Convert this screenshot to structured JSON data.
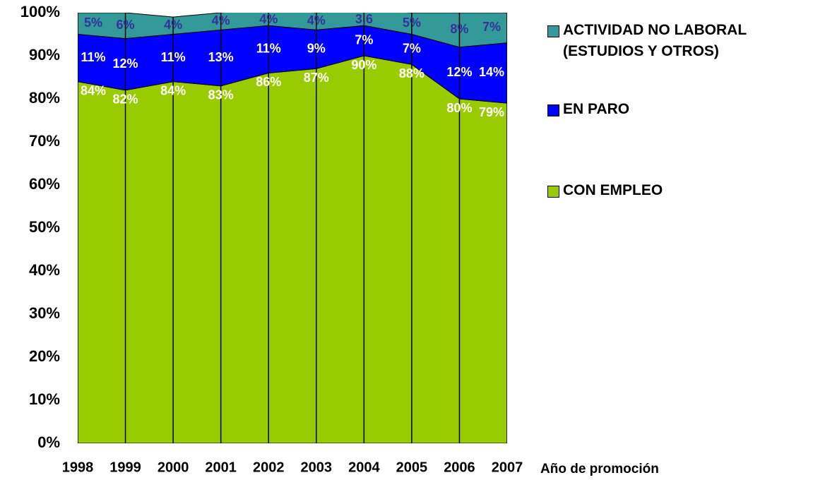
{
  "chart_data": {
    "type": "stacked_area",
    "x_label": "Año de promoción",
    "categories": [
      "1998",
      "1999",
      "2000",
      "2001",
      "2002",
      "2003",
      "2004",
      "2005",
      "2006",
      "2007"
    ],
    "series": [
      {
        "name": "CON EMPLEO",
        "color": "#99cc00",
        "label_color": "#ffffff",
        "values": [
          84,
          82,
          84,
          83,
          86,
          87,
          90,
          88,
          80,
          79
        ],
        "value_labels": [
          "84%",
          "82%",
          "84%",
          "83%",
          "86%",
          "87%",
          "90%",
          "88%",
          "80%",
          "79%"
        ]
      },
      {
        "name": "EN PARO",
        "color": "#0000ff",
        "label_color": "#ffffff",
        "values": [
          11,
          12,
          11,
          13,
          11,
          9,
          7,
          7,
          12,
          14
        ],
        "value_labels": [
          "11%",
          "12%",
          "11%",
          "13%",
          "11%",
          "9%",
          "7%",
          "7%",
          "12%",
          "14%"
        ]
      },
      {
        "name": "ACTIVIDAD NO LABORAL (ESTUDIOS Y OTROS)",
        "color": "#339999",
        "label_color": "#333399",
        "values": [
          5,
          6,
          4,
          4,
          4,
          4,
          3.6,
          5,
          8,
          7
        ],
        "value_labels": [
          "5%",
          "6%",
          "4%",
          "4%",
          "4%",
          "4%",
          "3,6",
          "5%",
          "8%",
          "7%"
        ]
      }
    ],
    "ylim": [
      0,
      100
    ],
    "yticks": [
      {
        "value": 0,
        "label": "0%"
      },
      {
        "value": 10,
        "label": "10%"
      },
      {
        "value": 20,
        "label": "20%"
      },
      {
        "value": 30,
        "label": "30%"
      },
      {
        "value": 40,
        "label": "40%"
      },
      {
        "value": 50,
        "label": "50%"
      },
      {
        "value": 60,
        "label": "60%"
      },
      {
        "value": 70,
        "label": "70%"
      },
      {
        "value": 80,
        "label": "80%"
      },
      {
        "value": 90,
        "label": "90%"
      },
      {
        "value": 100,
        "label": "100%"
      }
    ]
  }
}
